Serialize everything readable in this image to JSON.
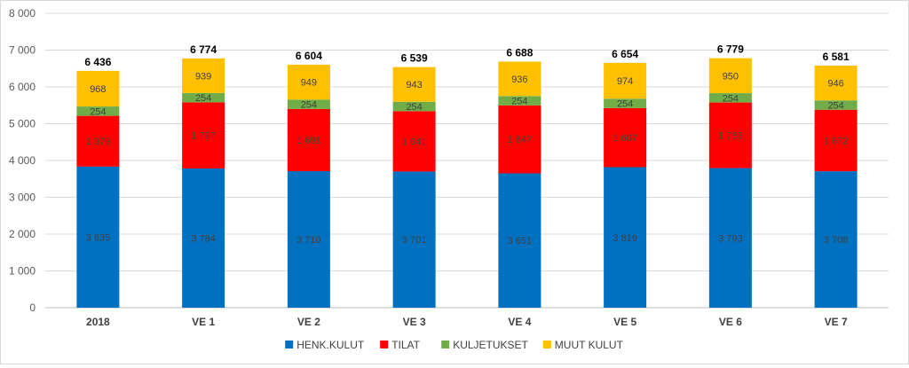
{
  "chart_data": {
    "type": "bar",
    "stacked": true,
    "title": "",
    "xlabel": "",
    "ylabel": "",
    "ylim": [
      0,
      8000
    ],
    "y_ticks": [
      "0",
      "1 000",
      "2 000",
      "3 000",
      "4 000",
      "5 000",
      "6 000",
      "7 000",
      "8 000"
    ],
    "y_tick_values": [
      0,
      1000,
      2000,
      3000,
      4000,
      5000,
      6000,
      7000,
      8000
    ],
    "grid": true,
    "legend_position": "bottom",
    "categories": [
      "2018",
      "VE 1",
      "VE 2",
      "VE 3",
      "VE 4",
      "VE 5",
      "VE 6",
      "VE 7"
    ],
    "series": [
      {
        "name": "HENK.KULUT",
        "color": "#0070c0",
        "values": [
          3835,
          3784,
          3710,
          3701,
          3651,
          3819,
          3793,
          3708
        ],
        "labels": [
          "3 835",
          "3 784",
          "3 710",
          "3 701",
          "3 651",
          "3 819",
          "3 793",
          "3 708"
        ]
      },
      {
        "name": "TILAT",
        "color": "#ff0000",
        "values": [
          1379,
          1797,
          1691,
          1641,
          1847,
          1607,
          1783,
          1672
        ],
        "labels": [
          "1 379",
          "1 797",
          "1 691",
          "1 641",
          "1 847",
          "1 607",
          "1 783",
          "1 672"
        ]
      },
      {
        "name": "KULJETUKSET",
        "color": "#70ad47",
        "values": [
          254,
          254,
          254,
          254,
          254,
          254,
          254,
          254
        ],
        "labels": [
          "254",
          "254",
          "254",
          "254",
          "254",
          "254",
          "254",
          "254"
        ]
      },
      {
        "name": "MUUT KULUT",
        "color": "#ffc000",
        "values": [
          968,
          939,
          949,
          943,
          936,
          974,
          950,
          946
        ],
        "labels": [
          "968",
          "939",
          "949",
          "943",
          "936",
          "974",
          "950",
          "946"
        ]
      }
    ],
    "totals": [
      6436,
      6774,
      6604,
      6539,
      6688,
      6654,
      6779,
      6581
    ],
    "total_labels": [
      "6 436",
      "6 774",
      "6 604",
      "6 539",
      "6 688",
      "6 654",
      "6 779",
      "6 581"
    ]
  }
}
